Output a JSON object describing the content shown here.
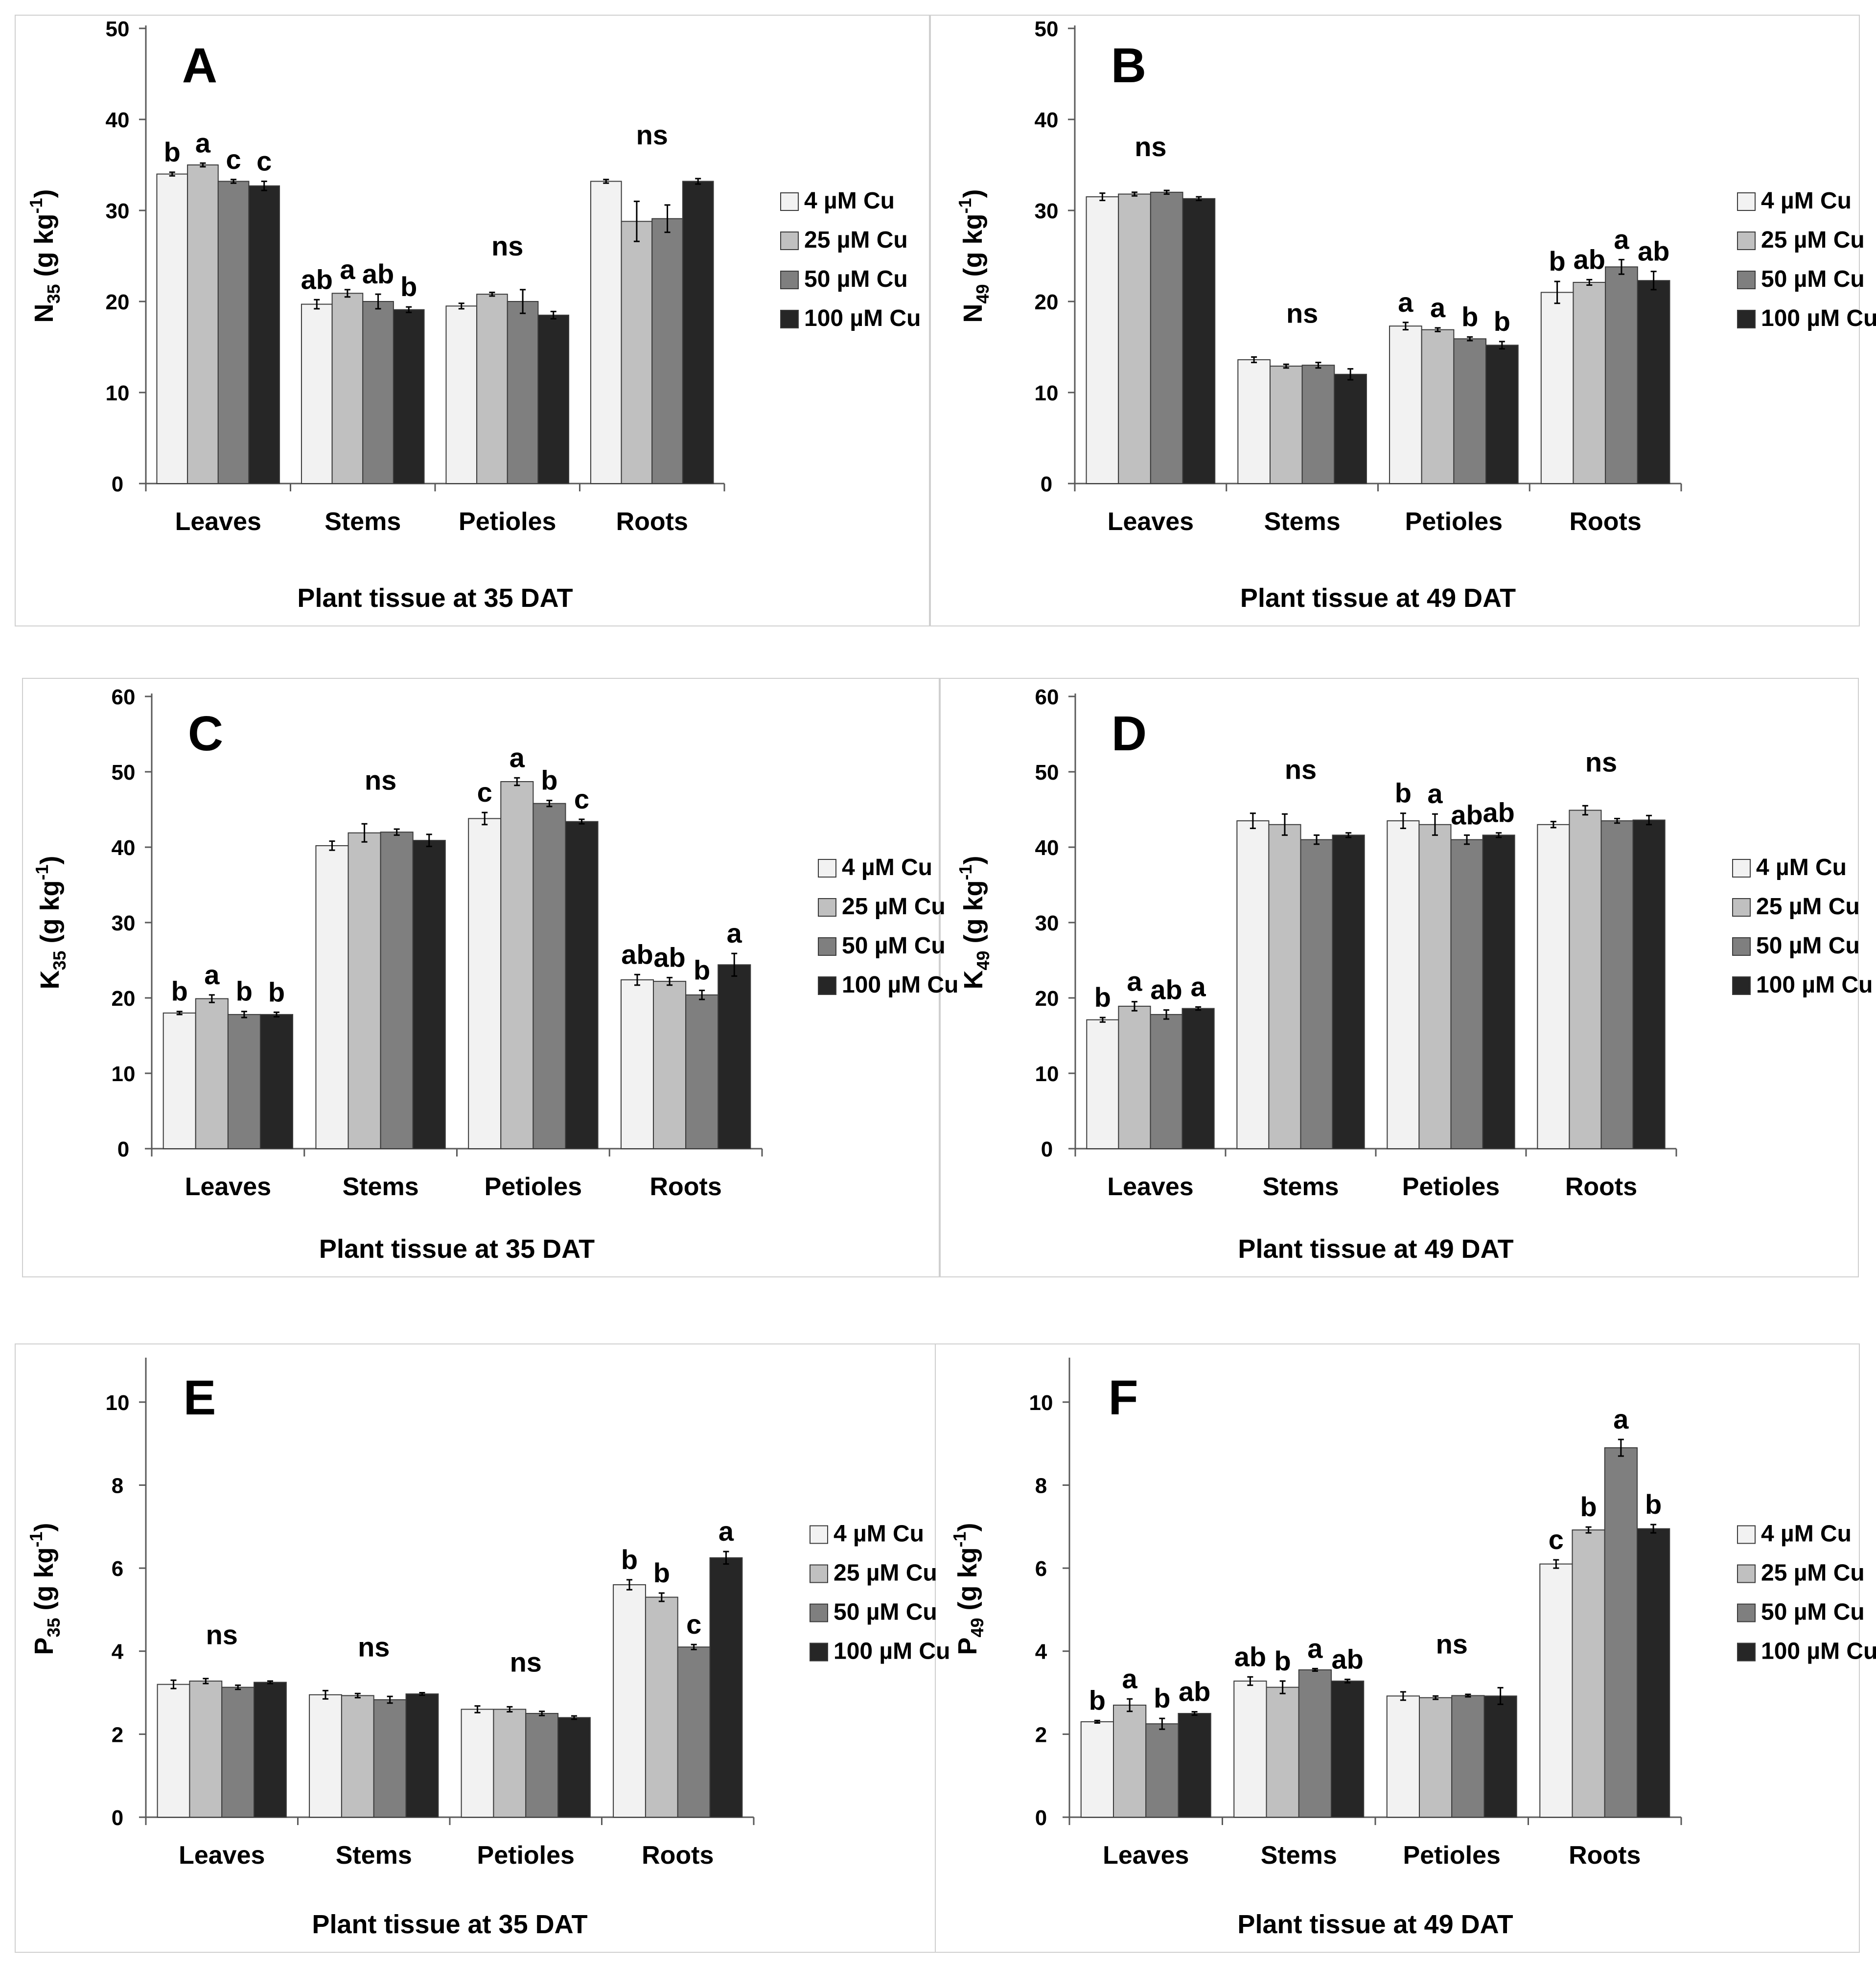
{
  "chart_data": [
    {
      "type": "bar",
      "panel_label": "A",
      "xlabel": "Plant tissue at 35 DAT",
      "ylabel": {
        "base": "N",
        "sub": "35",
        "rest": " (g kg",
        "sup": "-1",
        "end": ")"
      },
      "ylim": [
        0,
        50
      ],
      "yticks": [
        "0",
        "10",
        "20",
        "30",
        "40",
        "50"
      ],
      "categories": [
        "Leaves",
        "Stems",
        "Petioles",
        "Roots"
      ],
      "series": [
        {
          "name": "4 µM Cu",
          "values": [
            34.0,
            19.7,
            19.5,
            33.2
          ],
          "errors": [
            0.2,
            0.5,
            0.3,
            0.2
          ]
        },
        {
          "name": "25 µM Cu",
          "values": [
            35.0,
            20.9,
            20.8,
            28.8
          ],
          "errors": [
            0.2,
            0.4,
            0.2,
            2.2
          ]
        },
        {
          "name": "50 µM Cu",
          "values": [
            33.2,
            20.0,
            20.0,
            29.1
          ],
          "errors": [
            0.2,
            0.8,
            1.3,
            1.5
          ]
        },
        {
          "name": "100 µM Cu",
          "values": [
            32.7,
            19.1,
            18.5,
            33.2
          ],
          "errors": [
            0.5,
            0.3,
            0.4,
            0.3
          ]
        }
      ],
      "significance": [
        [
          "b",
          "a",
          "c",
          "c"
        ],
        [
          "ab",
          "a",
          "ab",
          "b"
        ],
        [
          "ns"
        ],
        [
          "ns"
        ]
      ],
      "legend_position": "right"
    },
    {
      "type": "bar",
      "panel_label": "B",
      "xlabel": "Plant tissue at 49 DAT",
      "ylabel": {
        "base": "N",
        "sub": "49",
        "rest": " (g kg",
        "sup": "-1",
        "end": ")"
      },
      "ylim": [
        0,
        50
      ],
      "yticks": [
        "0",
        "10",
        "20",
        "30",
        "40",
        "50"
      ],
      "categories": [
        "Leaves",
        "Stems",
        "Petioles",
        "Roots"
      ],
      "series": [
        {
          "name": "4 µM Cu",
          "values": [
            31.5,
            13.6,
            17.3,
            21.0
          ],
          "errors": [
            0.4,
            0.3,
            0.4,
            1.2
          ]
        },
        {
          "name": "25 µM Cu",
          "values": [
            31.8,
            12.9,
            16.9,
            22.1
          ],
          "errors": [
            0.2,
            0.2,
            0.2,
            0.3
          ]
        },
        {
          "name": "50 µM Cu",
          "values": [
            32.0,
            13.0,
            15.9,
            23.8
          ],
          "errors": [
            0.2,
            0.3,
            0.2,
            0.8
          ]
        },
        {
          "name": "100 µM Cu",
          "values": [
            31.3,
            12.0,
            15.2,
            22.3
          ],
          "errors": [
            0.2,
            0.6,
            0.4,
            1.0
          ]
        }
      ],
      "significance": [
        [
          "ns"
        ],
        [
          "ns"
        ],
        [
          "a",
          "a",
          "b",
          "b"
        ],
        [
          "b",
          "ab",
          "a",
          "ab"
        ]
      ],
      "legend_position": "right"
    },
    {
      "type": "bar",
      "panel_label": "C",
      "xlabel": "Plant tissue at 35 DAT",
      "ylabel": {
        "base": "K",
        "sub": "35",
        "rest": " (g kg",
        "sup": "-1",
        "end": ")"
      },
      "ylim": [
        0,
        60
      ],
      "yticks": [
        "0",
        "10",
        "20",
        "30",
        "40",
        "50",
        "60"
      ],
      "categories": [
        "Leaves",
        "Stems",
        "Petioles",
        "Roots"
      ],
      "series": [
        {
          "name": "4 µM Cu",
          "values": [
            18.0,
            40.2,
            43.8,
            22.4
          ],
          "errors": [
            0.2,
            0.6,
            0.8,
            0.7
          ]
        },
        {
          "name": "25 µM Cu",
          "values": [
            19.9,
            41.9,
            48.7,
            22.2
          ],
          "errors": [
            0.5,
            1.2,
            0.5,
            0.5
          ]
        },
        {
          "name": "50 µM Cu",
          "values": [
            17.8,
            42.0,
            45.8,
            20.4
          ],
          "errors": [
            0.4,
            0.4,
            0.4,
            0.6
          ]
        },
        {
          "name": "100 µM Cu",
          "values": [
            17.8,
            40.9,
            43.4,
            24.4
          ],
          "errors": [
            0.3,
            0.8,
            0.3,
            1.5
          ]
        }
      ],
      "significance": [
        [
          "b",
          "a",
          "b",
          "b"
        ],
        [
          "ns"
        ],
        [
          "c",
          "a",
          "b",
          "c"
        ],
        [
          "ab",
          "ab",
          "b",
          "a"
        ]
      ],
      "legend_position": "right"
    },
    {
      "type": "bar",
      "panel_label": "D",
      "xlabel": "Plant tissue at 49 DAT",
      "ylabel": {
        "base": "K",
        "sub": "49",
        "rest": " (g kg",
        "sup": "-1",
        "end": ")"
      },
      "ylim": [
        0,
        60
      ],
      "yticks": [
        "0",
        "10",
        "20",
        "30",
        "40",
        "50",
        "60"
      ],
      "categories": [
        "Leaves",
        "Stems",
        "Petioles",
        "Roots"
      ],
      "series": [
        {
          "name": "4 µM Cu",
          "values": [
            17.1,
            43.5,
            43.5,
            43.0
          ],
          "errors": [
            0.3,
            1.0,
            1.0,
            0.4
          ]
        },
        {
          "name": "25 µM Cu",
          "values": [
            18.9,
            43.0,
            43.0,
            44.9
          ],
          "errors": [
            0.6,
            1.4,
            1.4,
            0.6
          ]
        },
        {
          "name": "50 µM Cu",
          "values": [
            17.8,
            41.0,
            41.0,
            43.5
          ],
          "errors": [
            0.6,
            0.6,
            0.6,
            0.3
          ]
        },
        {
          "name": "100 µM Cu",
          "values": [
            18.6,
            41.6,
            41.6,
            43.6
          ],
          "errors": [
            0.2,
            0.3,
            0.3,
            0.6
          ]
        }
      ],
      "significance": [
        [
          "b",
          "a",
          "ab",
          "a"
        ],
        [
          "ns"
        ],
        [
          "b",
          "a",
          "ab",
          "ab"
        ],
        [
          "ns"
        ]
      ],
      "legend_position": "right"
    },
    {
      "type": "bar",
      "panel_label": "E",
      "xlabel": "Plant tissue at 35 DAT",
      "ylabel": {
        "base": "P",
        "sub": "35",
        "rest": " (g kg",
        "sup": "-1",
        "end": ")"
      },
      "ylim": [
        0,
        11
      ],
      "yticks": [
        "0",
        "2",
        "4",
        "6",
        "8",
        "10"
      ],
      "categories": [
        "Leaves",
        "Stems",
        "Petioles",
        "Roots"
      ],
      "series": [
        {
          "name": "4 µM Cu",
          "values": [
            3.2,
            2.95,
            2.6,
            5.6
          ],
          "errors": [
            0.1,
            0.1,
            0.08,
            0.12
          ]
        },
        {
          "name": "25 µM Cu",
          "values": [
            3.28,
            2.93,
            2.6,
            5.3
          ],
          "errors": [
            0.06,
            0.05,
            0.06,
            0.1
          ]
        },
        {
          "name": "50 µM Cu",
          "values": [
            3.13,
            2.83,
            2.5,
            4.1
          ],
          "errors": [
            0.05,
            0.08,
            0.05,
            0.06
          ]
        },
        {
          "name": "100 µM Cu",
          "values": [
            3.25,
            2.97,
            2.4,
            6.25
          ],
          "errors": [
            0.03,
            0.03,
            0.04,
            0.15
          ]
        }
      ],
      "significance": [
        [
          "ns"
        ],
        [
          "ns"
        ],
        [
          "ns"
        ],
        [
          "b",
          "b",
          "c",
          "a"
        ]
      ],
      "legend_position": "right"
    },
    {
      "type": "bar",
      "panel_label": "F",
      "xlabel": "Plant tissue at 49 DAT",
      "ylabel": {
        "base": "P",
        "sub": "49",
        "rest": " (g kg",
        "sup": "-1",
        "end": ")"
      },
      "ylim": [
        0,
        11
      ],
      "yticks": [
        "0",
        "2",
        "4",
        "6",
        "8",
        "10"
      ],
      "categories": [
        "Leaves",
        "Stems",
        "Petioles",
        "Roots"
      ],
      "series": [
        {
          "name": "4 µM Cu",
          "values": [
            2.3,
            3.28,
            2.92,
            6.1
          ],
          "errors": [
            0.03,
            0.1,
            0.1,
            0.1
          ]
        },
        {
          "name": "25 µM Cu",
          "values": [
            2.7,
            3.13,
            2.88,
            6.92
          ],
          "errors": [
            0.15,
            0.15,
            0.04,
            0.07
          ]
        },
        {
          "name": "50 µM Cu",
          "values": [
            2.25,
            3.55,
            2.93,
            8.9
          ],
          "errors": [
            0.13,
            0.03,
            0.03,
            0.2
          ]
        },
        {
          "name": "100 µM Cu",
          "values": [
            2.5,
            3.28,
            2.92,
            6.95
          ],
          "errors": [
            0.04,
            0.04,
            0.2,
            0.1
          ]
        }
      ],
      "significance": [
        [
          "b",
          "a",
          "b",
          "ab"
        ],
        [
          "ab",
          "b",
          "a",
          "ab"
        ],
        [
          "ns"
        ],
        [
          "c",
          "b",
          "a",
          "b"
        ]
      ],
      "legend_position": "right"
    }
  ],
  "colors": {
    "series": [
      "#f2f2f2",
      "#c0c0c0",
      "#7f7f7f",
      "#262626"
    ],
    "axis": "#595959",
    "text": "#000000",
    "panel_border": "#cfcfcf"
  }
}
